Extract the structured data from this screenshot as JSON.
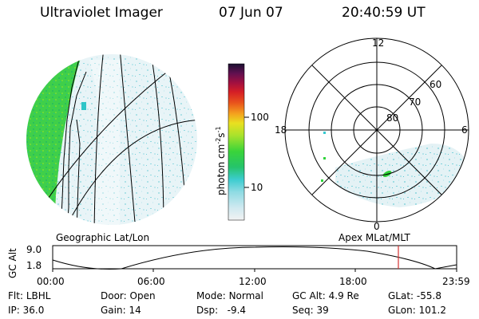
{
  "header": {
    "title": "Ultraviolet Imager",
    "date": "07 Jun 07",
    "time": "20:40:59 UT"
  },
  "colors": {
    "aurora_dim": "#bfe6ee",
    "aurora_mid": "#36c9d0",
    "aurora_bright": "#2fd43a",
    "aurora_peak": "#9fe834",
    "marker": "#d63333"
  },
  "geo_panel": {
    "label": "Geographic Lat/Lon"
  },
  "polar_panel": {
    "label": "Apex MLat/MLT",
    "mlt_labels": {
      "top": "12",
      "bottom": "0",
      "left": "18",
      "right": "6"
    },
    "lat_labels": [
      "60",
      "70",
      "80"
    ]
  },
  "colorbar": {
    "unit_label": "photon cm",
    "unit_exp1": "-2",
    "unit_s": "s",
    "unit_exp2": "-1",
    "ticks": [
      "100",
      "10"
    ],
    "scale": "log"
  },
  "altitude_plot": {
    "ylabel": "GC Alt",
    "yticks": [
      "9.0",
      "1.8"
    ],
    "xticks": [
      "00:00",
      "06:00",
      "12:00",
      "18:00",
      "23:59"
    ],
    "marker_time": "20:41"
  },
  "status": {
    "flt": {
      "label": "Flt:",
      "value": "LBHL"
    },
    "ip": {
      "label": "IP:",
      "value": "36.0"
    },
    "door": {
      "label": "Door:",
      "value": "Open"
    },
    "gain": {
      "label": "Gain:",
      "value": "14"
    },
    "mode": {
      "label": "Mode:",
      "value": "Normal"
    },
    "dsp": {
      "label": "Dsp:",
      "value": "-9.4"
    },
    "gcalt": {
      "label": "GC Alt:",
      "value": "4.9 Re"
    },
    "seq": {
      "label": "Seq:",
      "value": "39"
    },
    "glat": {
      "label": "GLat:",
      "value": "-55.8"
    },
    "glon": {
      "label": "GLon:",
      "value": "101.2"
    }
  }
}
